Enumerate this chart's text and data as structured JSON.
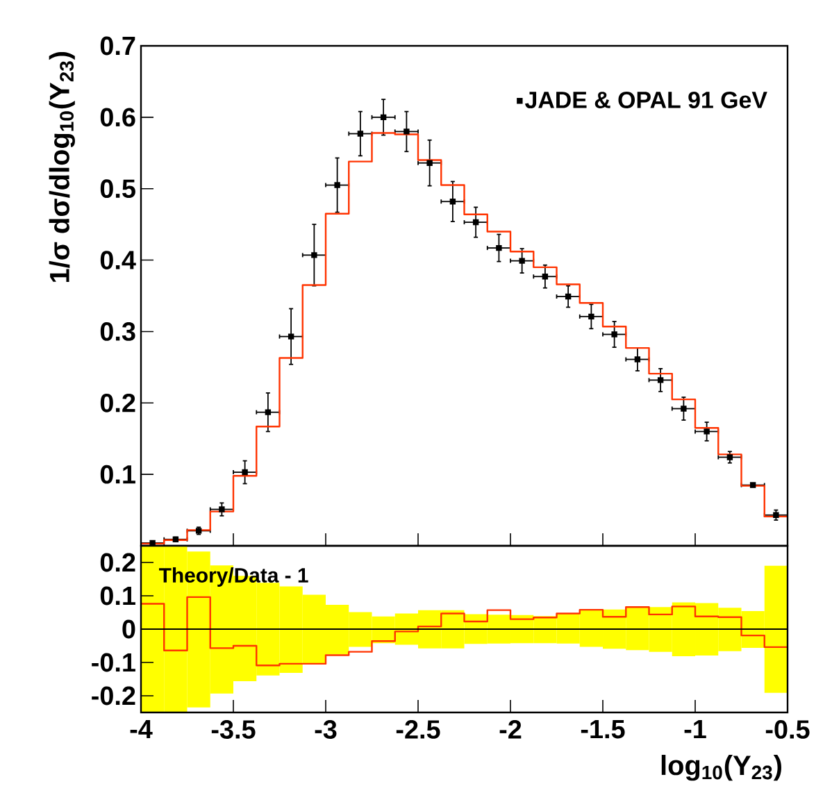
{
  "chart_data": [
    {
      "type": "scatter",
      "ylabel": "1/σ dσ/dlog$_{10}$(Y$_{23}$)",
      "xlim": [
        -4,
        -0.5
      ],
      "xticks": [
        -4,
        -3.5,
        -3,
        -2.5,
        -2,
        -1.5,
        -1,
        -0.5
      ],
      "ylim": [
        0,
        0.7
      ],
      "yticks": [
        0.1,
        0.2,
        0.3,
        0.4,
        0.5,
        0.6,
        0.7
      ],
      "tick_labels": "y",
      "legend": "top right",
      "marker": "square",
      "bins": [
        -4,
        -3.875,
        -3.75,
        -3.625,
        -3.5,
        -3.375,
        -3.25,
        -3.125,
        -3,
        -2.875,
        -2.75,
        -2.625,
        -2.5,
        -2.375,
        -2.25,
        -2.125,
        -2,
        -1.875,
        -1.75,
        -1.625,
        -1.5,
        -1.375,
        -1.25,
        -1.125,
        -1,
        -0.875,
        -0.75,
        -0.625,
        -0.5
      ],
      "series": [
        {
          "name": "JADE & OPAL 91 GeV",
          "color": "#000000",
          "x": [
            -3.9375,
            -3.8125,
            -3.6875,
            -3.5625,
            -3.4375,
            -3.3125,
            -3.1875,
            -3.0625,
            -2.9375,
            -2.8125,
            -2.6875,
            -2.5625,
            -2.4375,
            -2.3125,
            -2.1875,
            -2.0625,
            -1.9375,
            -1.8125,
            -1.6875,
            -1.5625,
            -1.4375,
            -1.3125,
            -1.1875,
            -1.0625,
            -0.9375,
            -0.8125,
            -0.6875,
            -0.5625
          ],
          "values": [
            0.004,
            0.009,
            0.021,
            0.051,
            0.103,
            0.187,
            0.293,
            0.407,
            0.505,
            0.577,
            0.6,
            0.58,
            0.536,
            0.482,
            0.453,
            0.417,
            0.399,
            0.377,
            0.349,
            0.321,
            0.296,
            0.261,
            0.232,
            0.192,
            0.16,
            0.124,
            0.085,
            0.043
          ],
          "errors": [
            0.002,
            0.003,
            0.005,
            0.009,
            0.016,
            0.027,
            0.039,
            0.043,
            0.038,
            0.031,
            0.025,
            0.028,
            0.032,
            0.028,
            0.021,
            0.019,
            0.017,
            0.016,
            0.015,
            0.017,
            0.018,
            0.016,
            0.016,
            0.016,
            0.013,
            0.008,
            0.002,
            0.007
          ],
          "xerrors": [
            0.0625,
            0.0625,
            0.0625,
            0.0625,
            0.0625,
            0.0625,
            0.0625,
            0.0625,
            0.0625,
            0.0625,
            0.0625,
            0.0625,
            0.0625,
            0.0625,
            0.0625,
            0.0625,
            0.0625,
            0.0625,
            0.0625,
            0.0625,
            0.0625,
            0.0625,
            0.0625,
            0.0625,
            0.0625,
            0.0625,
            0.0625,
            0.0625
          ]
        },
        {
          "type": "histogram",
          "color": "#ff3300",
          "values": [
            0.003,
            0.008,
            0.022,
            0.048,
            0.098,
            0.167,
            0.263,
            0.365,
            0.465,
            0.538,
            0.578,
            0.576,
            0.54,
            0.505,
            0.464,
            0.44,
            0.412,
            0.39,
            0.366,
            0.34,
            0.307,
            0.277,
            0.241,
            0.205,
            0.165,
            0.128,
            0.084,
            0.041
          ]
        }
      ]
    },
    {
      "type": "histogram",
      "xlabel": "log$_{10}$(Y$_{23}$)",
      "xlim": [
        -4,
        -0.5
      ],
      "xticks": [
        -4,
        -3.5,
        -3,
        -2.5,
        -2,
        -1.5,
        -1,
        -0.5
      ],
      "ylim": [
        -0.25,
        0.25
      ],
      "yticks": [
        -0.2,
        -0.1,
        0,
        0.1,
        0.2
      ],
      "annotations": [
        "Theory/Data - 1"
      ],
      "bins": [
        -4,
        -3.875,
        -3.75,
        -3.625,
        -3.5,
        -3.375,
        -3.25,
        -3.125,
        -3,
        -2.875,
        -2.75,
        -2.625,
        -2.5,
        -2.375,
        -2.25,
        -2.125,
        -2,
        -1.875,
        -1.75,
        -1.625,
        -1.5,
        -1.375,
        -1.25,
        -1.125,
        -1,
        -0.875,
        -0.75,
        -0.625,
        -0.5
      ],
      "ref_lines": [
        {
          "axis": "y",
          "value": 0,
          "color": "#000000"
        }
      ],
      "series": [
        {
          "type": "bar",
          "color": "#ffff00",
          "x": [
            -3.9375,
            -3.8125,
            -3.6875,
            -3.5625,
            -3.4375,
            -3.3125,
            -3.1875,
            -3.0625,
            -2.9375,
            -2.8125,
            -2.6875,
            -2.5625,
            -2.4375,
            -2.3125,
            -2.1875,
            -2.0625,
            -1.9375,
            -1.8125,
            -1.6875,
            -1.5625,
            -1.4375,
            -1.3125,
            -1.1875,
            -1.0625,
            -0.9375,
            -0.8125,
            -0.6875,
            -0.5625
          ],
          "base": [
            -0.25,
            -0.25,
            -0.235,
            -0.193,
            -0.156,
            -0.139,
            -0.131,
            -0.103,
            -0.076,
            -0.053,
            -0.042,
            -0.047,
            -0.058,
            -0.058,
            -0.044,
            -0.043,
            -0.042,
            -0.042,
            -0.043,
            -0.053,
            -0.059,
            -0.063,
            -0.068,
            -0.081,
            -0.079,
            -0.066,
            -0.056,
            -0.191
          ],
          "values": [
            0.5,
            0.5,
            0.468,
            0.384,
            0.316,
            0.278,
            0.259,
            0.206,
            0.149,
            0.104,
            0.08,
            0.094,
            0.115,
            0.115,
            0.089,
            0.086,
            0.084,
            0.081,
            0.089,
            0.112,
            0.118,
            0.129,
            0.134,
            0.161,
            0.157,
            0.13,
            0.11,
            0.381
          ]
        },
        {
          "color": "#ff3300",
          "values": [
            0.076,
            -0.064,
            0.096,
            -0.057,
            -0.05,
            -0.109,
            -0.104,
            -0.104,
            -0.078,
            -0.068,
            -0.036,
            -0.007,
            0.008,
            0.047,
            0.023,
            0.057,
            0.03,
            0.035,
            0.047,
            0.058,
            0.037,
            0.066,
            0.044,
            0.068,
            0.038,
            0.036,
            -0.019,
            -0.054
          ]
        }
      ]
    }
  ]
}
